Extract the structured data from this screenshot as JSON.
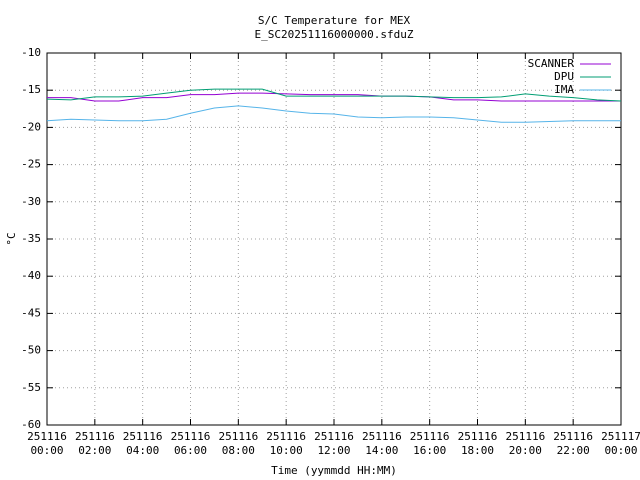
{
  "chart_data": {
    "type": "line",
    "title": "S/C Temperature for MEX",
    "subtitle": "E_SC20251116000000.sfduZ",
    "x_label": "Time (yymmdd HH:MM)",
    "y_label": "°C",
    "x": [
      0,
      1,
      2,
      3,
      4,
      5,
      6,
      7,
      8,
      9,
      10,
      11,
      12,
      13,
      14,
      15,
      16,
      17,
      18,
      19,
      20,
      21,
      22,
      23,
      24
    ],
    "series": [
      {
        "name": "SCANNER",
        "color": "#9400d3",
        "values": [
          -16.0,
          -16.0,
          -16.45,
          -16.45,
          -16.0,
          -16.0,
          -15.6,
          -15.6,
          -15.4,
          -15.4,
          -15.5,
          -15.6,
          -15.6,
          -15.6,
          -15.8,
          -15.8,
          -15.9,
          -16.3,
          -16.3,
          -16.45,
          -16.45,
          -16.45,
          -16.45,
          -16.45,
          -16.45
        ]
      },
      {
        "name": "DPU",
        "color": "#009e73",
        "values": [
          -16.2,
          -16.3,
          -15.9,
          -15.9,
          -15.8,
          -15.4,
          -15.0,
          -14.85,
          -14.85,
          -14.85,
          -15.8,
          -15.8,
          -15.8,
          -15.8,
          -15.8,
          -15.8,
          -15.9,
          -16.0,
          -16.0,
          -15.9,
          -15.5,
          -15.8,
          -16.0,
          -16.3,
          -16.45
        ]
      },
      {
        "name": "IMA",
        "color": "#56b4e9",
        "values": [
          -19.1,
          -18.9,
          -19.0,
          -19.1,
          -19.1,
          -18.9,
          -18.1,
          -17.4,
          -17.1,
          -17.4,
          -17.8,
          -18.1,
          -18.2,
          -18.6,
          -18.7,
          -18.6,
          -18.6,
          -18.7,
          -19.0,
          -19.3,
          -19.3,
          -19.2,
          -19.1,
          -19.1,
          -19.1
        ]
      }
    ],
    "xlim": [
      0,
      24
    ],
    "xticks": [
      {
        "value": 0,
        "label": "251116\n00:00"
      },
      {
        "value": 2,
        "label": "251116\n02:00"
      },
      {
        "value": 4,
        "label": "251116\n04:00"
      },
      {
        "value": 6,
        "label": "251116\n06:00"
      },
      {
        "value": 8,
        "label": "251116\n08:00"
      },
      {
        "value": 10,
        "label": "251116\n10:00"
      },
      {
        "value": 12,
        "label": "251116\n12:00"
      },
      {
        "value": 14,
        "label": "251116\n14:00"
      },
      {
        "value": 16,
        "label": "251116\n16:00"
      },
      {
        "value": 18,
        "label": "251116\n18:00"
      },
      {
        "value": 20,
        "label": "251116\n20:00"
      },
      {
        "value": 22,
        "label": "251116\n22:00"
      },
      {
        "value": 24,
        "label": "251117\n00:00"
      }
    ],
    "ylim": [
      -60,
      -10
    ],
    "yticks": [
      -60,
      -55,
      -50,
      -45,
      -40,
      -35,
      -30,
      -25,
      -20,
      -15,
      -10
    ],
    "grid": true,
    "legend": "top-right"
  }
}
